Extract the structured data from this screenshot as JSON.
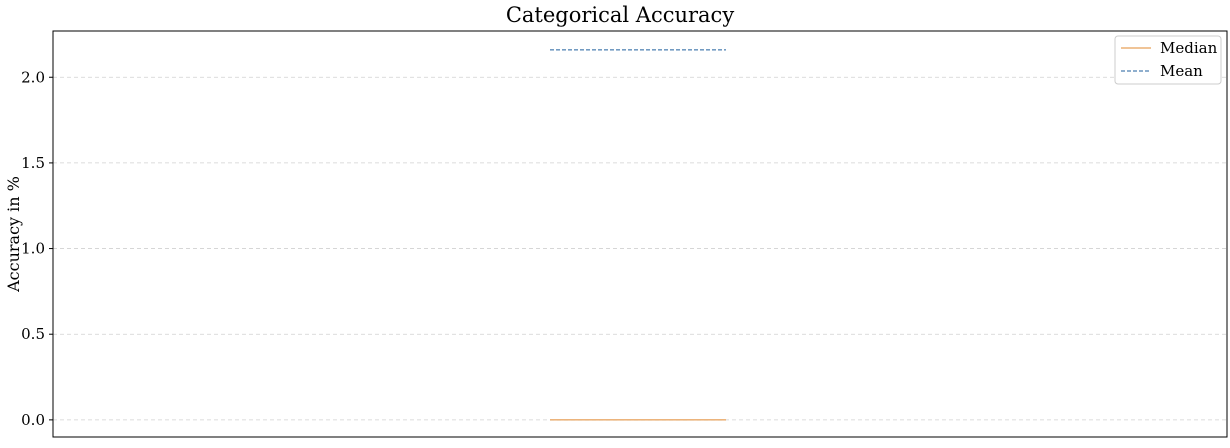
{
  "chart_data": {
    "type": "box",
    "title": "Categorical Accuracy",
    "xlabel": "",
    "ylabel": "Accuracy in %",
    "ylim": [
      -0.1,
      2.27
    ],
    "yticks": [
      0.0,
      0.5,
      1.0,
      1.5,
      2.0
    ],
    "ytick_labels": [
      "0.0",
      "0.5",
      "1.0",
      "1.5",
      "2.0"
    ],
    "grid": true,
    "legend_position": "top-right",
    "series": [
      {
        "name": "Median",
        "values": [
          0.0
        ],
        "color": "#e0882f",
        "style": "solid"
      },
      {
        "name": "Mean",
        "values": [
          2.16
        ],
        "color": "#1f5f9e",
        "style": "dashed"
      }
    ]
  }
}
